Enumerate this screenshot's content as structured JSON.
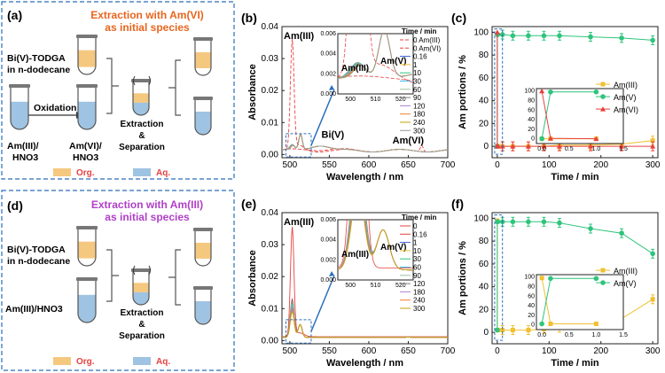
{
  "colors": {
    "orange": "#e8651e",
    "purple": "#b040c8",
    "blue_box": "#2a6ebb",
    "org": "#f5c880",
    "aq": "#9fc3e2",
    "amIII": "#f0c030",
    "amV": "#2fc47c",
    "amVI": "#e84040"
  },
  "panel_a": {
    "label": "(a)",
    "title_line1": "Extraction with Am(VI)",
    "title_line2": "as initial species",
    "tube_label_org": "Bi(V)-TODGA",
    "tube_label_org2": "in n-dodecane",
    "oxidation": "Oxidation",
    "aq_start1": "Am(III)/",
    "aq_start2": "HNO3",
    "aq_after1": "Am(VI)/",
    "aq_after2": "HNO3",
    "extraction": "Extraction",
    "amp": "&",
    "separation": "Separation",
    "legend_org": "Org.",
    "legend_aq": "Aq."
  },
  "panel_d": {
    "label": "(d)",
    "title_line1": "Extraction with Am(III)",
    "title_line2": "as initial species",
    "tube_label_org": "Bi(V)-TODGA",
    "tube_label_org2": "in n-dodecane",
    "aq_start": "Am(III)/HNO3",
    "extraction": "Extraction",
    "amp": "&",
    "separation": "Separation",
    "legend_org": "Org.",
    "legend_aq": "Aq."
  },
  "chart_data": [
    {
      "id": "b",
      "label": "(b)",
      "type": "line",
      "xlabel": "Wavelength / nm",
      "ylabel": "Absorbance",
      "xlim": [
        490,
        700
      ],
      "ylim": [
        -0.001,
        0.04
      ],
      "xticks": [
        500,
        550,
        600,
        650,
        700
      ],
      "yticks": [
        0.0,
        0.01,
        0.02,
        0.03,
        0.04
      ],
      "legend_title": "Time / min",
      "series_names": [
        "0 Am(III)",
        "0 Am(VI)",
        "0.16",
        "1",
        "10",
        "30",
        "60",
        "90",
        "120",
        "180",
        "240",
        "300"
      ],
      "annotations": [
        "Am(III)",
        "Bi(V)",
        "Am(VI)"
      ],
      "inset": {
        "xlim": [
          495,
          525
        ],
        "ylim": [
          0,
          0.006
        ],
        "xticks": [
          500,
          510,
          520
        ],
        "yticks": [
          0.0,
          0.002,
          0.004,
          0.006
        ],
        "labels": [
          "Am(III)",
          "Am(V)"
        ]
      }
    },
    {
      "id": "c",
      "label": "(c)",
      "type": "line",
      "xlabel": "Time / min",
      "ylabel": "Am portions / %",
      "xlim": [
        -10,
        310
      ],
      "ylim": [
        -10,
        105
      ],
      "xticks": [
        0,
        100,
        200,
        300
      ],
      "yticks": [
        0,
        20,
        40,
        60,
        80,
        100
      ],
      "x": [
        0,
        0.16,
        1,
        10,
        30,
        60,
        90,
        120,
        180,
        240,
        300
      ],
      "series": [
        {
          "name": "Am(III)",
          "values": [
            0,
            0,
            0,
            0,
            0,
            0,
            0,
            1,
            1,
            2,
            5
          ]
        },
        {
          "name": "Am(V)",
          "values": [
            0,
            98,
            98,
            98,
            97,
            97,
            97,
            97,
            96,
            95,
            93
          ]
        },
        {
          "name": "Am(VI)",
          "values": [
            100,
            1,
            0,
            0,
            0,
            0,
            0,
            0,
            0,
            0,
            0
          ]
        }
      ],
      "inset": {
        "xlim": [
          -0.1,
          1.5
        ],
        "ylim": [
          -10,
          105
        ],
        "xticks": [
          0.0,
          0.5,
          1.0,
          1.5
        ],
        "yticks": [
          0,
          20,
          40,
          60,
          80,
          100
        ]
      }
    },
    {
      "id": "e",
      "label": "(e)",
      "type": "line",
      "xlabel": "Wavelength / nm",
      "ylabel": "Absorbance",
      "xlim": [
        490,
        700
      ],
      "ylim": [
        -0.001,
        0.04
      ],
      "xticks": [
        500,
        550,
        600,
        650,
        700
      ],
      "yticks": [
        0.0,
        0.01,
        0.02,
        0.03,
        0.04
      ],
      "legend_title": "Time / min",
      "series_names": [
        "0",
        "0.16",
        "1",
        "10",
        "30",
        "60",
        "90",
        "120",
        "180",
        "240",
        "300"
      ],
      "annotations": [
        "Am(III)"
      ],
      "inset": {
        "xlim": [
          495,
          525
        ],
        "ylim": [
          0,
          0.006
        ],
        "xticks": [
          500,
          510,
          520
        ],
        "yticks": [
          0.0,
          0.002,
          0.004,
          0.006
        ],
        "labels": [
          "Am(III)",
          "Am(V)"
        ]
      }
    },
    {
      "id": "f",
      "label": "(f)",
      "type": "line",
      "xlabel": "Time / min",
      "ylabel": "Am portions / %",
      "xlim": [
        -10,
        310
      ],
      "ylim": [
        -10,
        105
      ],
      "xticks": [
        0,
        100,
        200,
        300
      ],
      "yticks": [
        0,
        20,
        40,
        60,
        80,
        100
      ],
      "x": [
        0,
        0.16,
        1,
        10,
        30,
        60,
        90,
        120,
        180,
        240,
        300
      ],
      "series": [
        {
          "name": "Am(III)",
          "values": [
            98,
            2,
            2,
            2,
            2,
            2,
            3,
            4,
            8,
            12,
            29
          ]
        },
        {
          "name": "Am(V)",
          "values": [
            2,
            97,
            97,
            97,
            97,
            97,
            97,
            96,
            91,
            87,
            69
          ]
        }
      ],
      "inset": {
        "xlim": [
          -0.1,
          1.5
        ],
        "ylim": [
          -10,
          105
        ],
        "xticks": [
          0.0,
          0.5,
          1.0,
          1.5
        ],
        "yticks": [
          0,
          20,
          40,
          60,
          80,
          100
        ]
      }
    }
  ]
}
